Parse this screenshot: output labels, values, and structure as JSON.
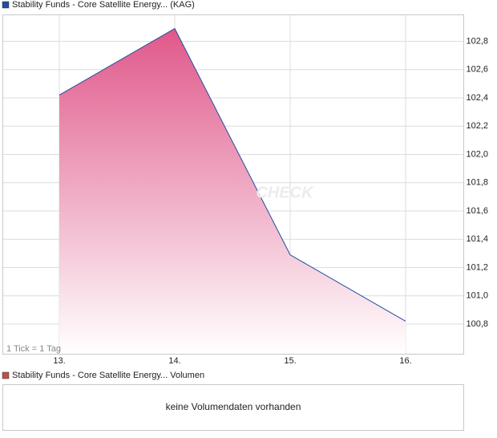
{
  "chart_data": {
    "type": "area",
    "categories": [
      "13.",
      "14.",
      "15.",
      "16."
    ],
    "series": [
      {
        "name": "Stability Funds - Core Satellite Energy... (KAG)",
        "color": "#1f4ea0",
        "fill_top": "#e0588a",
        "values": [
          102.42,
          102.89,
          101.29,
          100.82
        ]
      }
    ],
    "ylim": [
      100.59,
      102.99
    ],
    "yticks": [
      {
        "value": 100.8,
        "label": "100,8"
      },
      {
        "value": 101.0,
        "label": "101,0"
      },
      {
        "value": 101.2,
        "label": "101,2"
      },
      {
        "value": 101.4,
        "label": "101,4"
      },
      {
        "value": 101.6,
        "label": "101,6"
      },
      {
        "value": 101.8,
        "label": "101,8"
      },
      {
        "value": 102.0,
        "label": "102,0"
      },
      {
        "value": 102.2,
        "label": "102,2"
      },
      {
        "value": 102.4,
        "label": "102,4"
      },
      {
        "value": 102.6,
        "label": "102,6"
      },
      {
        "value": 102.8,
        "label": "102,8"
      }
    ],
    "grid": true,
    "annotation": "1 Tick = 1 Tag",
    "watermark": "CHECK",
    "volume_panel": {
      "legend": "Stability Funds - Core Satellite Energy... Volumen",
      "color": "#c0504d",
      "message": "keine Volumendaten vorhanden"
    }
  }
}
